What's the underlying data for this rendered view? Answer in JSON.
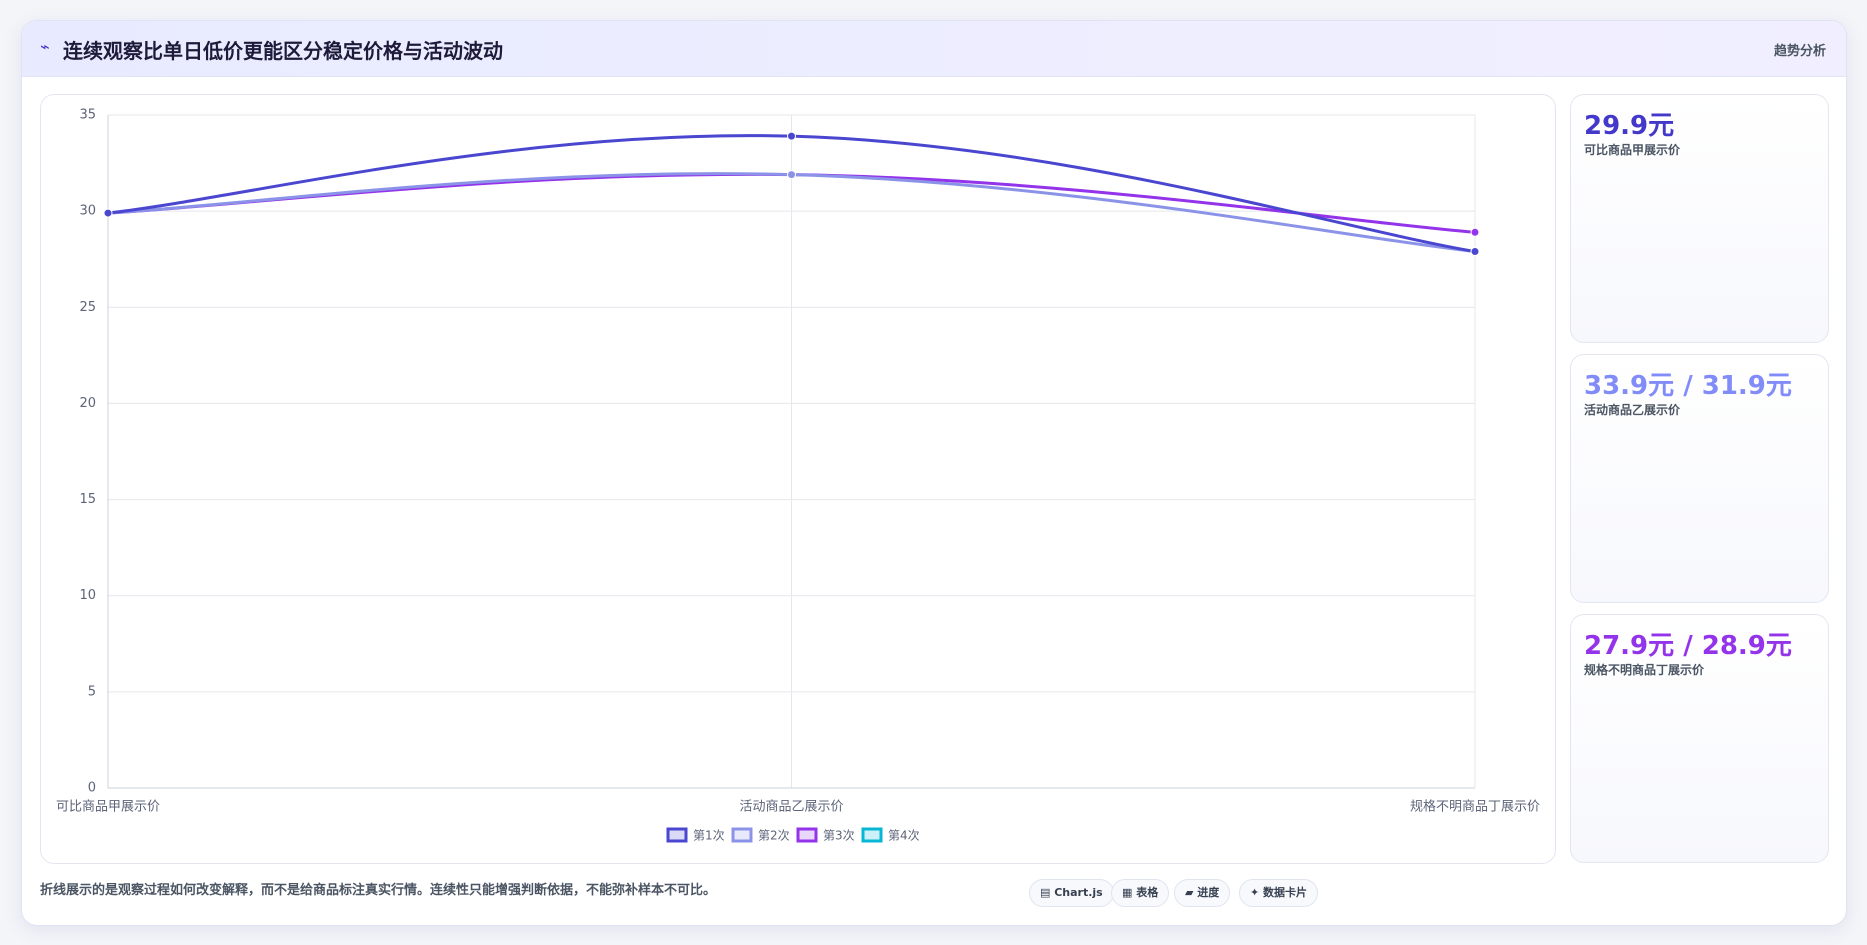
{
  "chart_data": {
    "type": "line",
    "title_icon": "⌁",
    "title": "连续观察比单日低价更能区分稳定价格与活动波动",
    "badge": "趋势分析",
    "categories": [
      "可比商品甲展示价",
      "活动商品乙展示价",
      "规格不明商品丁展示价"
    ],
    "series": [
      {
        "name": "第1次",
        "color": "#4a46d0",
        "values": [
          29.9,
          33.9,
          27.9
        ]
      },
      {
        "name": "第2次",
        "color": "#8b93e8",
        "values": [
          29.9,
          31.9,
          27.9
        ]
      },
      {
        "name": "第3次",
        "color": "#9333ea",
        "values": [
          29.9,
          31.9,
          28.9
        ]
      },
      {
        "name": "第4次",
        "color": "#06b6d4",
        "values": [
          null,
          null,
          null
        ]
      }
    ],
    "ylim": [
      0,
      35
    ],
    "yticks": [
      0,
      5,
      10,
      15,
      20,
      25,
      30,
      35
    ],
    "grid": true
  },
  "cards": [
    {
      "value": "29.9元",
      "label": "可比商品甲展示价",
      "color": "#4338ca"
    },
    {
      "value": "33.9元 / 31.9元",
      "label": "活动商品乙展示价",
      "color": "#818cf8"
    },
    {
      "value": "27.9元 / 28.9元",
      "label": "规格不明商品丁展示价",
      "color": "#9333ea"
    }
  ],
  "note": "折线展示的是观察过程如何改变解释，而不是给商品标注真实行情。连续性只能增强判断依据，不能弥补样本不可比。",
  "buttons": [
    "▤ Chart.js",
    "▦ 表格",
    "▰ 进度",
    "✦ 数据卡片"
  ]
}
